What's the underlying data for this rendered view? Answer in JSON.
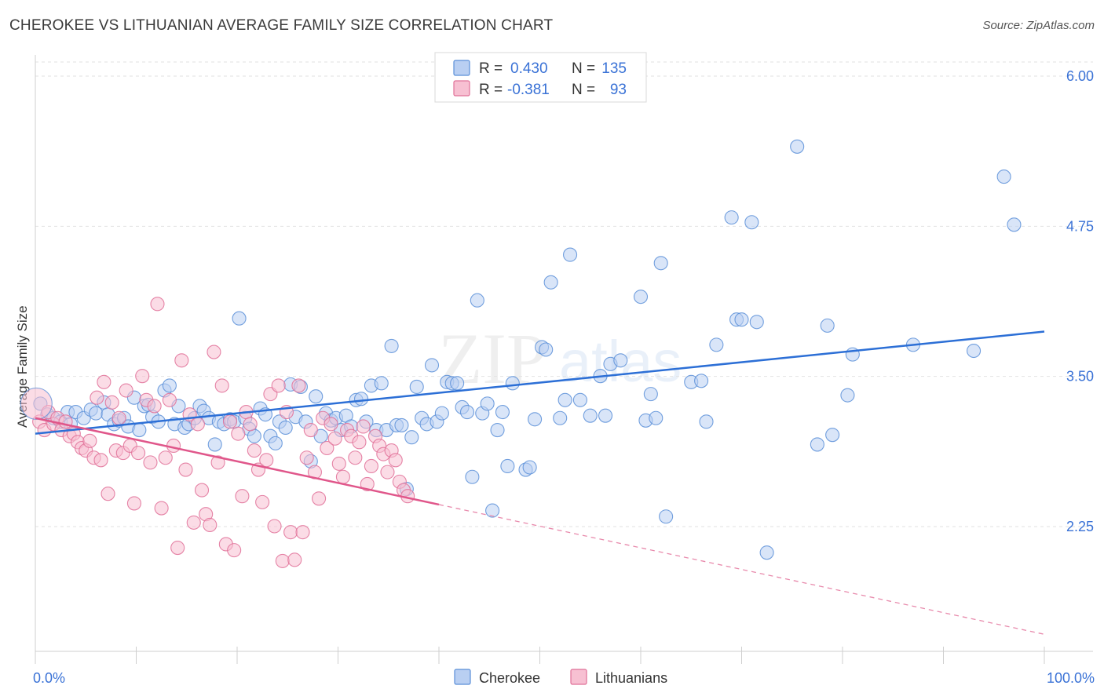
{
  "title": "CHEROKEE VS LITHUANIAN AVERAGE FAMILY SIZE CORRELATION CHART",
  "source": "Source: ZipAtlas.com",
  "watermark": {
    "zip": "ZIP",
    "atlas": "atlas"
  },
  "chart_data": {
    "type": "scatter",
    "ylabel": "Average Family Size",
    "xlim": [
      0,
      100
    ],
    "ylim": [
      1.0,
      6.25
    ],
    "yticks": [
      6.0,
      4.75,
      3.5,
      2.25
    ],
    "ytick_labels": [
      "6.00",
      "4.75",
      "3.50",
      "2.25"
    ],
    "xtick_labels": [
      "0.0%",
      "100.0%"
    ],
    "grid": true,
    "legend_position": "bottom-center",
    "stats": [
      {
        "r_label": "R =",
        "r_value": "0.430",
        "n_label": "N =",
        "n_value": "135"
      },
      {
        "r_label": "R =",
        "r_value": "-0.381",
        "n_label": "N =",
        "n_value": "93"
      }
    ],
    "series": [
      {
        "name": "Cherokee",
        "color": "#5b8fd8",
        "fill": "#b9cff2",
        "trend": {
          "x0": 0,
          "y0": 3.02,
          "x1": 100,
          "y1": 3.87
        },
        "points": [
          [
            0.5,
            3.27
          ],
          [
            1.2,
            3.18
          ],
          [
            1.8,
            3.15
          ],
          [
            2.5,
            3.12
          ],
          [
            3.2,
            3.2
          ],
          [
            3.5,
            3.1
          ],
          [
            4.0,
            3.2
          ],
          [
            4.8,
            3.15
          ],
          [
            5.5,
            3.22
          ],
          [
            6.0,
            3.19
          ],
          [
            6.8,
            3.28
          ],
          [
            7.2,
            3.18
          ],
          [
            7.8,
            3.1
          ],
          [
            8.3,
            3.13
          ],
          [
            8.8,
            3.15
          ],
          [
            9.2,
            3.08
          ],
          [
            9.8,
            3.32
          ],
          [
            10.3,
            3.05
          ],
          [
            10.8,
            3.25
          ],
          [
            11.2,
            3.26
          ],
          [
            11.6,
            3.16
          ],
          [
            12.2,
            3.12
          ],
          [
            12.8,
            3.38
          ],
          [
            13.3,
            3.42
          ],
          [
            13.8,
            3.1
          ],
          [
            14.2,
            3.25
          ],
          [
            14.8,
            3.07
          ],
          [
            15.2,
            3.1
          ],
          [
            15.8,
            3.15
          ],
          [
            16.3,
            3.25
          ],
          [
            16.7,
            3.21
          ],
          [
            17.2,
            3.15
          ],
          [
            17.8,
            2.93
          ],
          [
            18.2,
            3.12
          ],
          [
            18.7,
            3.1
          ],
          [
            19.3,
            3.14
          ],
          [
            19.7,
            3.12
          ],
          [
            20.2,
            3.98
          ],
          [
            20.8,
            3.15
          ],
          [
            21.2,
            3.06
          ],
          [
            21.7,
            3.0
          ],
          [
            22.3,
            3.23
          ],
          [
            22.8,
            3.18
          ],
          [
            23.3,
            3.0
          ],
          [
            23.8,
            2.94
          ],
          [
            24.2,
            3.12
          ],
          [
            24.8,
            3.07
          ],
          [
            25.3,
            3.43
          ],
          [
            25.8,
            3.16
          ],
          [
            26.3,
            3.41
          ],
          [
            26.8,
            3.12
          ],
          [
            27.3,
            2.79
          ],
          [
            27.8,
            3.33
          ],
          [
            28.3,
            3.0
          ],
          [
            28.8,
            3.19
          ],
          [
            29.3,
            3.13
          ],
          [
            29.8,
            3.15
          ],
          [
            30.3,
            3.05
          ],
          [
            30.8,
            3.17
          ],
          [
            31.3,
            3.08
          ],
          [
            31.8,
            3.3
          ],
          [
            32.3,
            3.31
          ],
          [
            32.8,
            3.12
          ],
          [
            33.3,
            3.42
          ],
          [
            33.8,
            3.05
          ],
          [
            34.3,
            3.44
          ],
          [
            34.8,
            3.05
          ],
          [
            35.3,
            3.75
          ],
          [
            35.8,
            3.09
          ],
          [
            36.3,
            3.09
          ],
          [
            36.8,
            2.56
          ],
          [
            37.3,
            2.99
          ],
          [
            37.8,
            3.41
          ],
          [
            38.3,
            3.15
          ],
          [
            38.8,
            3.1
          ],
          [
            39.3,
            3.59
          ],
          [
            39.8,
            3.12
          ],
          [
            40.3,
            3.19
          ],
          [
            40.8,
            3.45
          ],
          [
            41.3,
            3.44
          ],
          [
            41.8,
            3.44
          ],
          [
            42.3,
            3.24
          ],
          [
            42.8,
            3.2
          ],
          [
            43.3,
            2.66
          ],
          [
            43.8,
            4.13
          ],
          [
            44.3,
            3.19
          ],
          [
            44.8,
            3.27
          ],
          [
            45.3,
            2.38
          ],
          [
            45.8,
            3.05
          ],
          [
            46.3,
            3.2
          ],
          [
            46.8,
            2.75
          ],
          [
            47.3,
            3.44
          ],
          [
            48.6,
            2.72
          ],
          [
            49.0,
            2.74
          ],
          [
            49.5,
            3.14
          ],
          [
            50.2,
            3.74
          ],
          [
            50.6,
            3.72
          ],
          [
            51.1,
            4.28
          ],
          [
            52.0,
            3.15
          ],
          [
            52.5,
            3.3
          ],
          [
            53.0,
            4.51
          ],
          [
            54.0,
            3.3
          ],
          [
            55.0,
            3.17
          ],
          [
            56.0,
            3.5
          ],
          [
            56.5,
            3.17
          ],
          [
            57.0,
            3.6
          ],
          [
            58.0,
            3.63
          ],
          [
            60.0,
            4.16
          ],
          [
            60.5,
            3.13
          ],
          [
            61.0,
            3.35
          ],
          [
            61.5,
            3.15
          ],
          [
            62.0,
            4.44
          ],
          [
            62.5,
            2.33
          ],
          [
            65.0,
            3.45
          ],
          [
            66.0,
            3.46
          ],
          [
            66.5,
            3.12
          ],
          [
            67.5,
            3.76
          ],
          [
            69.0,
            4.82
          ],
          [
            69.5,
            3.97
          ],
          [
            70.0,
            3.97
          ],
          [
            71.0,
            4.78
          ],
          [
            71.5,
            3.95
          ],
          [
            72.5,
            2.03
          ],
          [
            75.5,
            5.41
          ],
          [
            77.5,
            2.93
          ],
          [
            78.5,
            3.92
          ],
          [
            79.0,
            3.01
          ],
          [
            80.5,
            3.34
          ],
          [
            81.0,
            3.68
          ],
          [
            87.0,
            3.76
          ],
          [
            93.0,
            3.71
          ],
          [
            96.0,
            5.16
          ],
          [
            97.0,
            4.76
          ]
        ]
      },
      {
        "name": "Lithuanians",
        "color": "#e07098",
        "fill": "#f7c0d2",
        "trend": {
          "x0": 0,
          "y0": 3.15,
          "x1": 40,
          "y1": 2.43,
          "dash_to_x": 100,
          "dash_to_y": 1.35
        },
        "points": [
          [
            0.4,
            3.12
          ],
          [
            0.9,
            3.05
          ],
          [
            1.3,
            3.2
          ],
          [
            1.8,
            3.1
          ],
          [
            2.2,
            3.15
          ],
          [
            2.6,
            3.05
          ],
          [
            3.0,
            3.12
          ],
          [
            3.4,
            3.0
          ],
          [
            3.8,
            3.02
          ],
          [
            4.2,
            2.95
          ],
          [
            4.6,
            2.9
          ],
          [
            5.0,
            2.88
          ],
          [
            5.4,
            2.96
          ],
          [
            5.8,
            2.82
          ],
          [
            6.1,
            3.32
          ],
          [
            6.5,
            2.8
          ],
          [
            6.8,
            3.45
          ],
          [
            7.2,
            2.52
          ],
          [
            7.6,
            3.28
          ],
          [
            8.0,
            2.88
          ],
          [
            8.3,
            3.15
          ],
          [
            8.7,
            2.86
          ],
          [
            9.0,
            3.38
          ],
          [
            9.4,
            2.92
          ],
          [
            9.8,
            2.44
          ],
          [
            10.2,
            2.86
          ],
          [
            10.6,
            3.5
          ],
          [
            11.0,
            3.3
          ],
          [
            11.4,
            2.78
          ],
          [
            11.8,
            3.25
          ],
          [
            12.1,
            4.1
          ],
          [
            12.5,
            2.4
          ],
          [
            12.9,
            2.82
          ],
          [
            13.3,
            3.3
          ],
          [
            13.7,
            2.92
          ],
          [
            14.1,
            2.07
          ],
          [
            14.5,
            3.63
          ],
          [
            14.9,
            2.72
          ],
          [
            15.3,
            3.18
          ],
          [
            15.7,
            2.28
          ],
          [
            16.1,
            3.1
          ],
          [
            16.5,
            2.55
          ],
          [
            16.9,
            2.35
          ],
          [
            17.3,
            2.26
          ],
          [
            17.7,
            3.7
          ],
          [
            18.1,
            2.78
          ],
          [
            18.5,
            3.42
          ],
          [
            18.9,
            2.1
          ],
          [
            19.3,
            3.12
          ],
          [
            19.7,
            2.05
          ],
          [
            20.1,
            3.02
          ],
          [
            20.5,
            2.5
          ],
          [
            20.9,
            3.2
          ],
          [
            21.3,
            3.1
          ],
          [
            21.7,
            2.88
          ],
          [
            22.1,
            2.72
          ],
          [
            22.5,
            2.45
          ],
          [
            22.9,
            2.8
          ],
          [
            23.3,
            3.35
          ],
          [
            23.7,
            2.25
          ],
          [
            24.1,
            3.42
          ],
          [
            24.5,
            1.96
          ],
          [
            24.9,
            3.2
          ],
          [
            25.3,
            2.2
          ],
          [
            25.7,
            1.97
          ],
          [
            26.1,
            3.42
          ],
          [
            26.5,
            2.2
          ],
          [
            26.9,
            2.82
          ],
          [
            27.3,
            3.05
          ],
          [
            27.7,
            2.7
          ],
          [
            28.1,
            2.48
          ],
          [
            28.5,
            3.15
          ],
          [
            28.9,
            2.9
          ],
          [
            29.3,
            3.1
          ],
          [
            29.7,
            2.98
          ],
          [
            30.1,
            2.77
          ],
          [
            30.5,
            2.66
          ],
          [
            30.9,
            3.05
          ],
          [
            31.3,
            3.0
          ],
          [
            31.7,
            2.82
          ],
          [
            32.1,
            2.95
          ],
          [
            32.5,
            3.08
          ],
          [
            32.9,
            2.6
          ],
          [
            33.3,
            2.75
          ],
          [
            33.7,
            3.0
          ],
          [
            34.1,
            2.92
          ],
          [
            34.5,
            2.85
          ],
          [
            34.9,
            2.7
          ],
          [
            35.3,
            2.88
          ],
          [
            35.7,
            2.8
          ],
          [
            36.1,
            2.62
          ],
          [
            36.5,
            2.55
          ],
          [
            36.9,
            2.5
          ]
        ]
      }
    ],
    "size_hint_big_point": 4.0
  }
}
